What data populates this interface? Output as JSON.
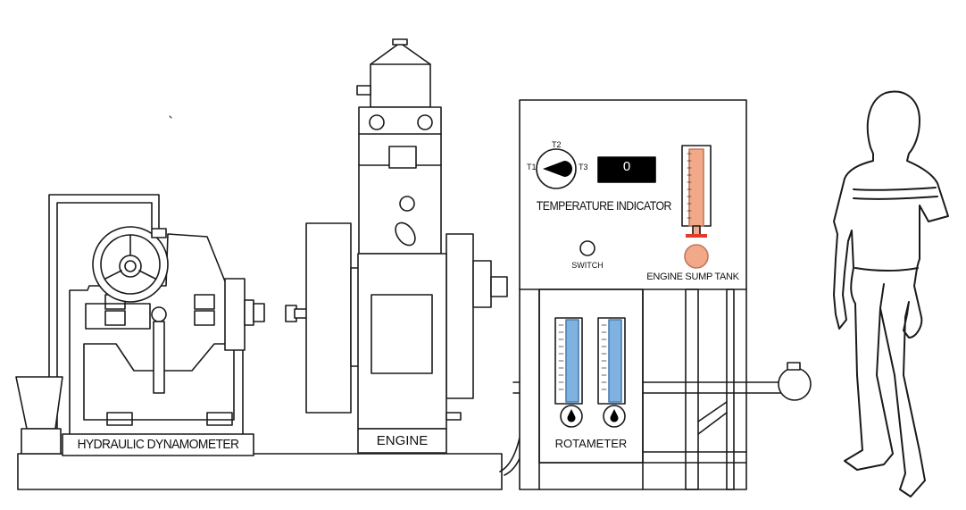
{
  "labels": {
    "hydraulic_dynamometer": "HYDRAULIC DYNAMOMETER",
    "engine": "ENGINE",
    "temperature_indicator": "TEMPERATURE INDICATOR",
    "switch": "SWITCH",
    "engine_sump_tank": "ENGINE SUMP TANK",
    "rotameter": "ROTAMETER"
  },
  "selector": {
    "t1": "T1",
    "t2": "T2",
    "t3": "T3"
  },
  "display": {
    "value": "0"
  },
  "colors": {
    "line": "#1a1a1a",
    "display_bg": "#000000",
    "display_text": "#ffffff",
    "rotameter_fill": "#7fb2e0",
    "sump_fill": "#f2a98a",
    "sump_marker": "#e53a2a"
  }
}
